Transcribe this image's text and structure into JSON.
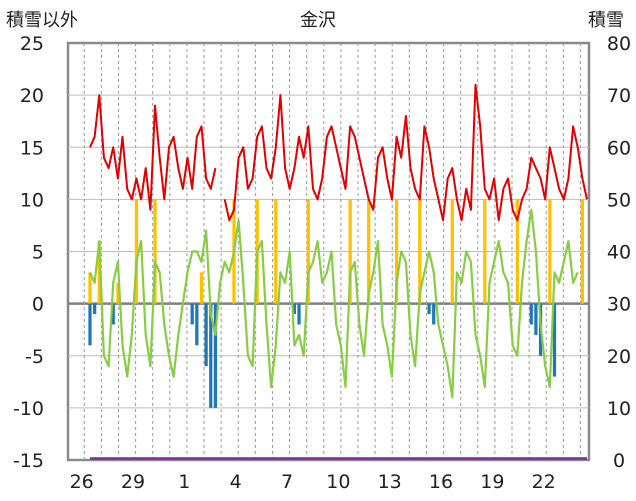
{
  "chart_data": {
    "type": "line",
    "title": "金沢",
    "ylabel_left": "積雪以外",
    "ylabel_right": "積雪",
    "ylim_left": [
      -15,
      25
    ],
    "ylim_right": [
      0,
      80
    ],
    "yticks_left": [
      "25",
      "20",
      "15",
      "10",
      "5",
      "0",
      "-5",
      "-10",
      "-15"
    ],
    "yticks_right": [
      "80",
      "70",
      "60",
      "50",
      "40",
      "30",
      "20",
      "10",
      "0"
    ],
    "xticks": [
      "26",
      "29",
      "1",
      "4",
      "7",
      "10",
      "13",
      "16",
      "19",
      "22"
    ],
    "grid": true,
    "series": [
      {
        "key": "red",
        "color": "#e00000",
        "axis": "left",
        "values": [
          15,
          16,
          20,
          14,
          13,
          15,
          12,
          16,
          11,
          10,
          12,
          10,
          13,
          9,
          19,
          14,
          10,
          15,
          16,
          13,
          11,
          14,
          11,
          16,
          17,
          12,
          11,
          13,
          null,
          10,
          8,
          9,
          14,
          15,
          11,
          12,
          16,
          17,
          13,
          12,
          15,
          20,
          13,
          11,
          13,
          16,
          14,
          17,
          11,
          10,
          12,
          16,
          17,
          15,
          13,
          11,
          17,
          16,
          14,
          12,
          10,
          9,
          14,
          15,
          12,
          10,
          16,
          14,
          18,
          13,
          11,
          10,
          17,
          15,
          12,
          10,
          8,
          12,
          13,
          10,
          8,
          11,
          9,
          21,
          17,
          11,
          10,
          12,
          8,
          11,
          12,
          9,
          8,
          10,
          11,
          14,
          13,
          12,
          10,
          15,
          13,
          11,
          10,
          12,
          17,
          15,
          12,
          10
        ]
      },
      {
        "key": "green",
        "color": "#88cc44",
        "axis": "left",
        "values": [
          3,
          2,
          6,
          -5,
          -6,
          2,
          4,
          -4,
          -7,
          -3,
          4,
          6,
          -3,
          -6,
          4,
          3,
          -2,
          -5,
          -7,
          -3,
          0,
          3,
          5,
          5,
          4,
          7,
          -1,
          -3,
          2,
          4,
          3,
          5,
          8,
          2,
          -5,
          -6,
          5,
          6,
          -2,
          -8,
          -4,
          3,
          2,
          5,
          -4,
          -3,
          -5,
          3,
          4,
          6,
          2,
          3,
          5,
          -2,
          -4,
          -8,
          3,
          4,
          -2,
          -5,
          1,
          3,
          6,
          -2,
          -4,
          -7,
          2,
          5,
          4,
          -3,
          -6,
          1,
          3,
          5,
          3,
          -2,
          -4,
          -6,
          -9,
          3,
          2,
          5,
          4,
          -3,
          -5,
          -8,
          2,
          4,
          6,
          3,
          2,
          -4,
          -5,
          2,
          6,
          9,
          5,
          -2,
          -6,
          -8,
          3,
          2,
          4,
          6,
          2,
          3
        ]
      },
      {
        "key": "snow",
        "color": "#ffc000",
        "axis": "left",
        "values": [
          3,
          0,
          6,
          0,
          0,
          0,
          2,
          0,
          0,
          0,
          10,
          0,
          0,
          0,
          10,
          0,
          0,
          0,
          0,
          0,
          0,
          0,
          0,
          0,
          3,
          0,
          0,
          0,
          0,
          0,
          0,
          10,
          0,
          0,
          0,
          0,
          10,
          0,
          0,
          0,
          10,
          0,
          0,
          0,
          0,
          0,
          0,
          10,
          0,
          0,
          0,
          0,
          0,
          0,
          0,
          0,
          10,
          0,
          0,
          0,
          10,
          0,
          0,
          0,
          0,
          0,
          10,
          0,
          0,
          0,
          0,
          10,
          0,
          0,
          0,
          0,
          0,
          0,
          10,
          0,
          0,
          0,
          0,
          0,
          0,
          10,
          0,
          0,
          0,
          0,
          0,
          0,
          10,
          0,
          0,
          0,
          0,
          0,
          0,
          10,
          0,
          0,
          0,
          0,
          0,
          0,
          10,
          0
        ]
      },
      {
        "key": "rain",
        "color": "#1f77b4",
        "axis": "left",
        "values": [
          -4,
          -1,
          0,
          0,
          0,
          -2,
          0,
          0,
          0,
          0,
          0,
          0,
          0,
          0,
          0,
          0,
          0,
          0,
          0,
          0,
          0,
          0,
          -2,
          -4,
          0,
          -6,
          -10,
          -10,
          0,
          0,
          0,
          0,
          0,
          0,
          0,
          0,
          0,
          0,
          0,
          0,
          0,
          0,
          0,
          0,
          -1,
          -2,
          0,
          0,
          0,
          0,
          0,
          0,
          0,
          0,
          0,
          0,
          0,
          0,
          0,
          0,
          0,
          0,
          0,
          0,
          0,
          0,
          0,
          0,
          0,
          0,
          0,
          0,
          0,
          -1,
          -2,
          0,
          0,
          0,
          0,
          0,
          0,
          0,
          0,
          0,
          0,
          0,
          0,
          0,
          0,
          0,
          0,
          0,
          0,
          0,
          0,
          -2,
          -3,
          -5,
          0,
          0,
          -7,
          0,
          0,
          0,
          0,
          0
        ]
      },
      {
        "key": "snow_depth",
        "color": "#7030a0",
        "axis": "right",
        "values": [
          0,
          0,
          0,
          0,
          0,
          0,
          0,
          0,
          0,
          0,
          0,
          0,
          0,
          0,
          0,
          0,
          0,
          0,
          0,
          0,
          0,
          0,
          0,
          0,
          0,
          0,
          0,
          0,
          0,
          0,
          0,
          0,
          0,
          0,
          0,
          0,
          0,
          0,
          0,
          0,
          0,
          0,
          0,
          0,
          0,
          0,
          0,
          0,
          0,
          0,
          0,
          0,
          0,
          0,
          0,
          0,
          0,
          0,
          0,
          0,
          0,
          0,
          0,
          0,
          0,
          0,
          0,
          0,
          0,
          0,
          0,
          0,
          0,
          0,
          0,
          0,
          0,
          0,
          0,
          0,
          0,
          0,
          0,
          0,
          0,
          0,
          0,
          0,
          0,
          0,
          0,
          0,
          0,
          0,
          0,
          0,
          0,
          0,
          0,
          0,
          0,
          0,
          0,
          0,
          0,
          0,
          0,
          0
        ]
      }
    ]
  }
}
